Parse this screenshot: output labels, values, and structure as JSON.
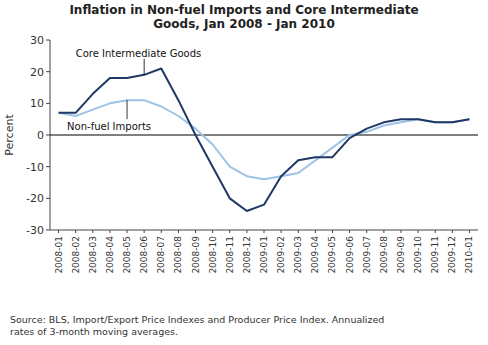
{
  "chart_data": {
    "type": "line",
    "title": "Inflation in Non-fuel Imports and Core Intermediate\nGoods, Jan 2008 - Jan 2010",
    "y_label": "Percent",
    "source": "Source: BLS, Import/Export Price Indexes and Producer Price Index. Annualized\nrates of 3-month moving averages.",
    "categories": [
      "2008-01",
      "2008-02",
      "2008-03",
      "2008-04",
      "2008-05",
      "2008-06",
      "2008-07",
      "2008-08",
      "2008-09",
      "2008-10",
      "2008-11",
      "2008-12",
      "2009-01",
      "2009-02",
      "2009-03",
      "2009-04",
      "2009-05",
      "2009-06",
      "2009-07",
      "2009-08",
      "2009-09",
      "2009-10",
      "2009-11",
      "2009-12",
      "2010-01"
    ],
    "series": [
      {
        "color": "#9DC3E6",
        "values": [
          7,
          6,
          8,
          10,
          11,
          11,
          9,
          6,
          2,
          -3,
          -10,
          -13,
          -14,
          -13,
          -12,
          -8,
          -4,
          0,
          1,
          3,
          4,
          5,
          4,
          4,
          5
        ]
      },
      {
        "color": "#1F3864",
        "values": [
          7,
          7,
          13,
          18,
          18,
          19,
          21,
          11,
          0,
          -10,
          -20,
          -24,
          -22,
          -13,
          -8,
          -7,
          -7,
          -1,
          2,
          4,
          5,
          5,
          4,
          4,
          5
        ]
      }
    ],
    "annotations": [
      {
        "text": "Core Intermediate Goods",
        "x": "2008-06",
        "y": 19
      },
      {
        "text": "Non-fuel Imports",
        "x": "2008-05",
        "y": 11
      }
    ],
    "ylim": [
      -30,
      30
    ],
    "yticks": [
      -30,
      -20,
      -10,
      0,
      10,
      20,
      30
    ],
    "grid": false
  }
}
